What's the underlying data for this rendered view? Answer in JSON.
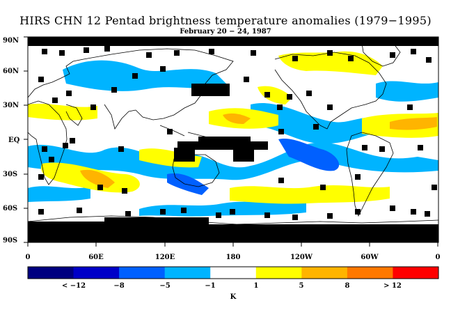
{
  "title": "HIRS CHN 12 Pentad brightness temperature anomalies (1979−1995)",
  "subtitle": "February 20 − 24, 1987",
  "lat_labels": [
    "90N",
    "60N",
    "30N",
    "EQ",
    "30S",
    "60S",
    "90S"
  ],
  "lon_labels": [
    "0",
    "60E",
    "120E",
    "180",
    "120W",
    "60W",
    "0"
  ],
  "colorbar": {
    "labels": [
      "< −12",
      "−8",
      "−5",
      "−1",
      "1",
      "5",
      "8",
      "> 12"
    ],
    "unit": "K",
    "colors": [
      "#000080",
      "#0000c8",
      "#0060ff",
      "#00b4ff",
      "#ffffff",
      "#ffff00",
      "#ffb400",
      "#ff7800",
      "#ff0000"
    ]
  },
  "map": {
    "missing_color": "#000000",
    "land_outline_color": "#000000"
  }
}
